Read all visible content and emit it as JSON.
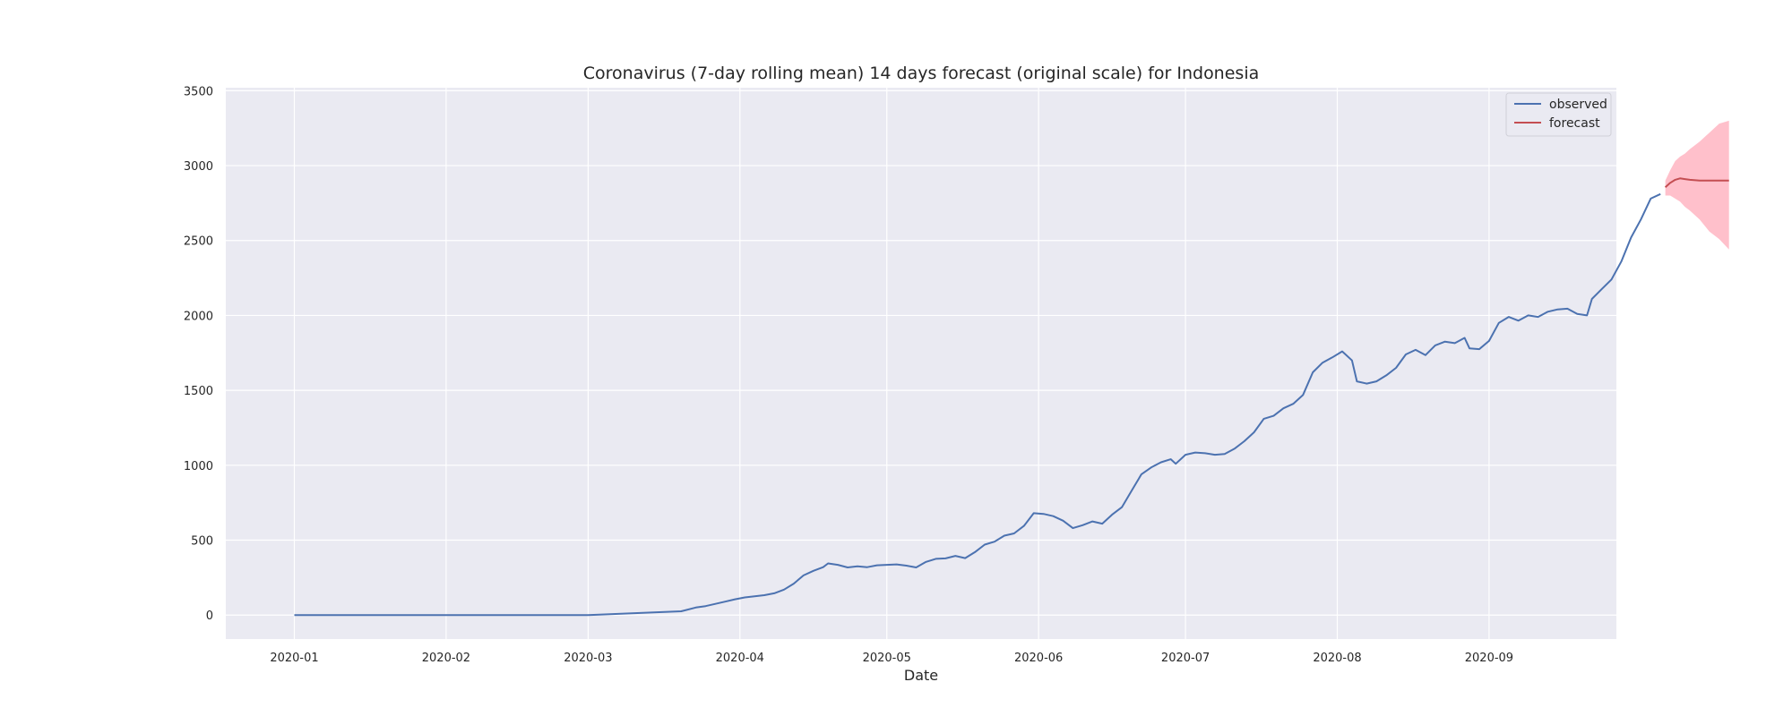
{
  "chart_data": {
    "type": "line",
    "title": "Coronavirus (7-day rolling mean) 14 days forecast (original scale) for Indonesia",
    "xlabel": "Date",
    "ylabel": "",
    "x_ticks": [
      "2020-01",
      "2020-02",
      "2020-03",
      "2020-04",
      "2020-05",
      "2020-06",
      "2020-07",
      "2020-08",
      "2020-09"
    ],
    "y_ticks": [
      0,
      500,
      1000,
      1500,
      2000,
      2500,
      3000,
      3500
    ],
    "xlim": [
      "2019-12-18",
      "2020-09-27"
    ],
    "ylim": [
      -160,
      3520
    ],
    "grid": true,
    "legend_position": "top-right",
    "colors": {
      "observed": "#4c72b0",
      "forecast": "#c44e52",
      "confidence": "#ffc0cb",
      "background": "#eaeaf2",
      "grid": "#ffffff"
    },
    "series": [
      {
        "name": "observed",
        "points": [
          [
            "2020-01-01",
            0
          ],
          [
            "2020-03-01",
            0
          ],
          [
            "2020-03-20",
            25
          ],
          [
            "2020-03-23",
            50
          ],
          [
            "2020-03-25",
            60
          ],
          [
            "2020-03-27",
            75
          ],
          [
            "2020-03-29",
            90
          ],
          [
            "2020-03-31",
            105
          ],
          [
            "2020-04-02",
            118
          ],
          [
            "2020-04-04",
            125
          ],
          [
            "2020-04-06",
            133
          ],
          [
            "2020-04-08",
            145
          ],
          [
            "2020-04-10",
            170
          ],
          [
            "2020-04-12",
            210
          ],
          [
            "2020-04-14",
            265
          ],
          [
            "2020-04-16",
            295
          ],
          [
            "2020-04-18",
            320
          ],
          [
            "2020-04-19",
            345
          ],
          [
            "2020-04-21",
            335
          ],
          [
            "2020-04-23",
            318
          ],
          [
            "2020-04-25",
            325
          ],
          [
            "2020-04-27",
            320
          ],
          [
            "2020-04-29",
            332
          ],
          [
            "2020-05-01",
            335
          ],
          [
            "2020-05-03",
            338
          ],
          [
            "2020-05-05",
            330
          ],
          [
            "2020-05-07",
            318
          ],
          [
            "2020-05-09",
            355
          ],
          [
            "2020-05-11",
            375
          ],
          [
            "2020-05-13",
            378
          ],
          [
            "2020-05-15",
            395
          ],
          [
            "2020-05-17",
            380
          ],
          [
            "2020-05-19",
            420
          ],
          [
            "2020-05-21",
            470
          ],
          [
            "2020-05-23",
            490
          ],
          [
            "2020-05-25",
            530
          ],
          [
            "2020-05-27",
            545
          ],
          [
            "2020-05-29",
            595
          ],
          [
            "2020-05-31",
            680
          ],
          [
            "2020-06-02",
            675
          ],
          [
            "2020-06-04",
            660
          ],
          [
            "2020-06-06",
            630
          ],
          [
            "2020-06-08",
            580
          ],
          [
            "2020-06-10",
            600
          ],
          [
            "2020-06-12",
            625
          ],
          [
            "2020-06-14",
            610
          ],
          [
            "2020-06-16",
            670
          ],
          [
            "2020-06-18",
            720
          ],
          [
            "2020-06-20",
            830
          ],
          [
            "2020-06-22",
            940
          ],
          [
            "2020-06-24",
            985
          ],
          [
            "2020-06-26",
            1020
          ],
          [
            "2020-06-28",
            1040
          ],
          [
            "2020-06-29",
            1010
          ],
          [
            "2020-07-01",
            1070
          ],
          [
            "2020-07-03",
            1085
          ],
          [
            "2020-07-05",
            1080
          ],
          [
            "2020-07-07",
            1070
          ],
          [
            "2020-07-09",
            1075
          ],
          [
            "2020-07-11",
            1110
          ],
          [
            "2020-07-13",
            1160
          ],
          [
            "2020-07-15",
            1220
          ],
          [
            "2020-07-17",
            1310
          ],
          [
            "2020-07-19",
            1330
          ],
          [
            "2020-07-21",
            1380
          ],
          [
            "2020-07-23",
            1410
          ],
          [
            "2020-07-25",
            1470
          ],
          [
            "2020-07-27",
            1620
          ],
          [
            "2020-07-29",
            1685
          ],
          [
            "2020-07-31",
            1720
          ],
          [
            "2020-08-02",
            1760
          ],
          [
            "2020-08-04",
            1700
          ],
          [
            "2020-08-05",
            1560
          ],
          [
            "2020-08-07",
            1545
          ],
          [
            "2020-08-09",
            1560
          ],
          [
            "2020-08-11",
            1600
          ],
          [
            "2020-08-13",
            1650
          ],
          [
            "2020-08-15",
            1740
          ],
          [
            "2020-08-17",
            1770
          ],
          [
            "2020-08-19",
            1735
          ],
          [
            "2020-08-21",
            1800
          ],
          [
            "2020-08-23",
            1825
          ],
          [
            "2020-08-25",
            1815
          ],
          [
            "2020-08-27",
            1850
          ],
          [
            "2020-08-28",
            1780
          ],
          [
            "2020-08-30",
            1775
          ],
          [
            "2020-09-01",
            1830
          ],
          [
            "2020-09-03",
            1950
          ],
          [
            "2020-09-05",
            1990
          ],
          [
            "2020-09-07",
            1965
          ],
          [
            "2020-09-09",
            2000
          ],
          [
            "2020-09-11",
            1990
          ],
          [
            "2020-09-13",
            2025
          ],
          [
            "2020-09-15",
            2040
          ],
          [
            "2020-09-17",
            2045
          ],
          [
            "2020-09-19",
            2010
          ],
          [
            "2020-09-21",
            2000
          ],
          [
            "2020-09-22",
            2110
          ],
          [
            "2020-09-24",
            2175
          ],
          [
            "2020-09-26",
            2240
          ],
          [
            "2020-09-28",
            2360
          ],
          [
            "2020-09-30",
            2520
          ],
          [
            "2020-10-02",
            2640
          ],
          [
            "2020-10-04",
            2780
          ],
          [
            "2020-10-06",
            2810
          ]
        ]
      },
      {
        "name": "forecast",
        "points": [
          [
            "2020-10-07",
            2855
          ],
          [
            "2020-10-08",
            2885
          ],
          [
            "2020-10-09",
            2905
          ],
          [
            "2020-10-10",
            2915
          ],
          [
            "2020-10-11",
            2910
          ],
          [
            "2020-10-12",
            2905
          ],
          [
            "2020-10-14",
            2900
          ],
          [
            "2020-10-16",
            2900
          ],
          [
            "2020-10-18",
            2900
          ],
          [
            "2020-10-20",
            2900
          ]
        ],
        "lower": [
          2800,
          2800,
          2780,
          2760,
          2725,
          2700,
          2640,
          2560,
          2510,
          2440
        ],
        "upper": [
          2900,
          2970,
          3030,
          3060,
          3080,
          3110,
          3160,
          3220,
          3280,
          3300
        ]
      }
    ]
  }
}
